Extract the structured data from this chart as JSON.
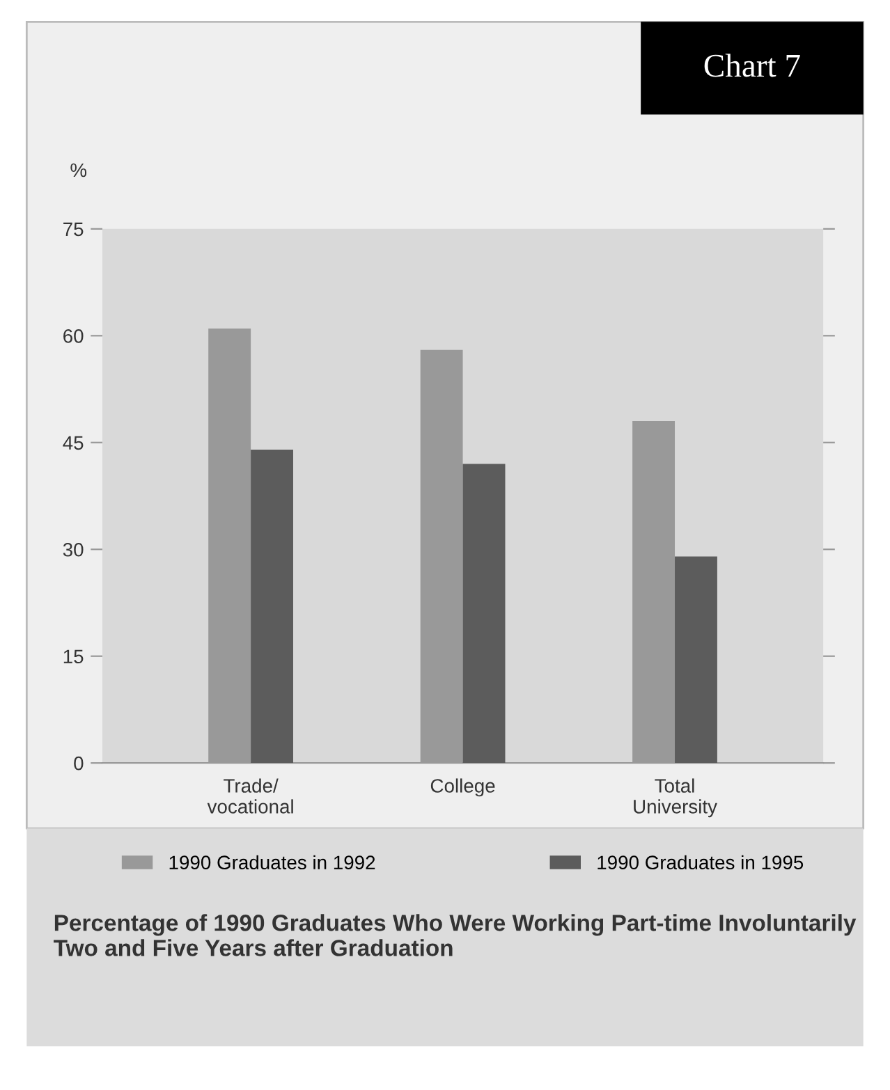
{
  "chart_data": {
    "type": "bar",
    "title": "Chart 7",
    "ylabel": "%",
    "categories": [
      "Trade/\nvocational",
      "College",
      "Total\nUniversity"
    ],
    "series": [
      {
        "name": "1990 Graduates in 1992",
        "color": "#999999",
        "values": [
          61,
          58,
          48
        ]
      },
      {
        "name": "1990 Graduates in 1995",
        "color": "#5c5c5c",
        "values": [
          44,
          42,
          29
        ]
      }
    ],
    "ylim": [
      0,
      75
    ],
    "yticks": [
      0,
      15,
      30,
      45,
      60,
      75
    ],
    "grid": false,
    "legend": "bottom",
    "annotations": [
      "Percentage of 1990 Graduates Who Were Working Part-time Involuntarily Two and Five Years after Graduation"
    ]
  }
}
